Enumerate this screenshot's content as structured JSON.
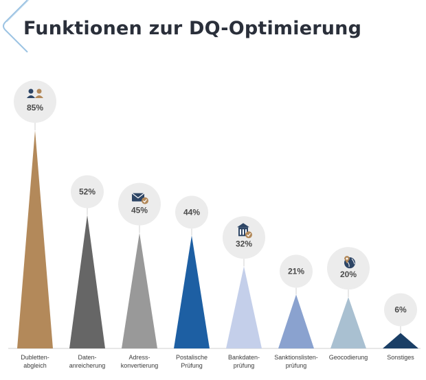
{
  "header": {
    "title": "Funktionen zur DQ-Optimierung"
  },
  "chart_data": {
    "type": "bar",
    "title": "Funktionen zur DQ-Optimierung",
    "xlabel": "",
    "ylabel": "",
    "ylim": [
      0,
      100
    ],
    "categories": [
      [
        "Dubletten-",
        "abgleich"
      ],
      [
        "Daten-",
        "anreicherung"
      ],
      [
        "Adress-",
        "konvertierung"
      ],
      [
        "Postalische",
        "Prüfung"
      ],
      [
        "Bankdaten-",
        "prüfung"
      ],
      [
        "Sanktionslisten-",
        "prüfung"
      ],
      [
        "Geocodierung"
      ],
      [
        "Sonstiges"
      ]
    ],
    "values": [
      85,
      52,
      45,
      44,
      32,
      21,
      20,
      6
    ],
    "value_labels": [
      "85%",
      "52%",
      "45%",
      "44%",
      "32%",
      "21%",
      "20%",
      "6%"
    ],
    "colors": [
      "#b3895a",
      "#666666",
      "#999999",
      "#1d5fa3",
      "#c4cfea",
      "#8aa2cf",
      "#a9c0d1",
      "#1a3f66"
    ],
    "icons": [
      "people-icon",
      "",
      "mail-check-icon",
      "",
      "bank-check-icon",
      "",
      "globe-pin-icon",
      ""
    ]
  }
}
